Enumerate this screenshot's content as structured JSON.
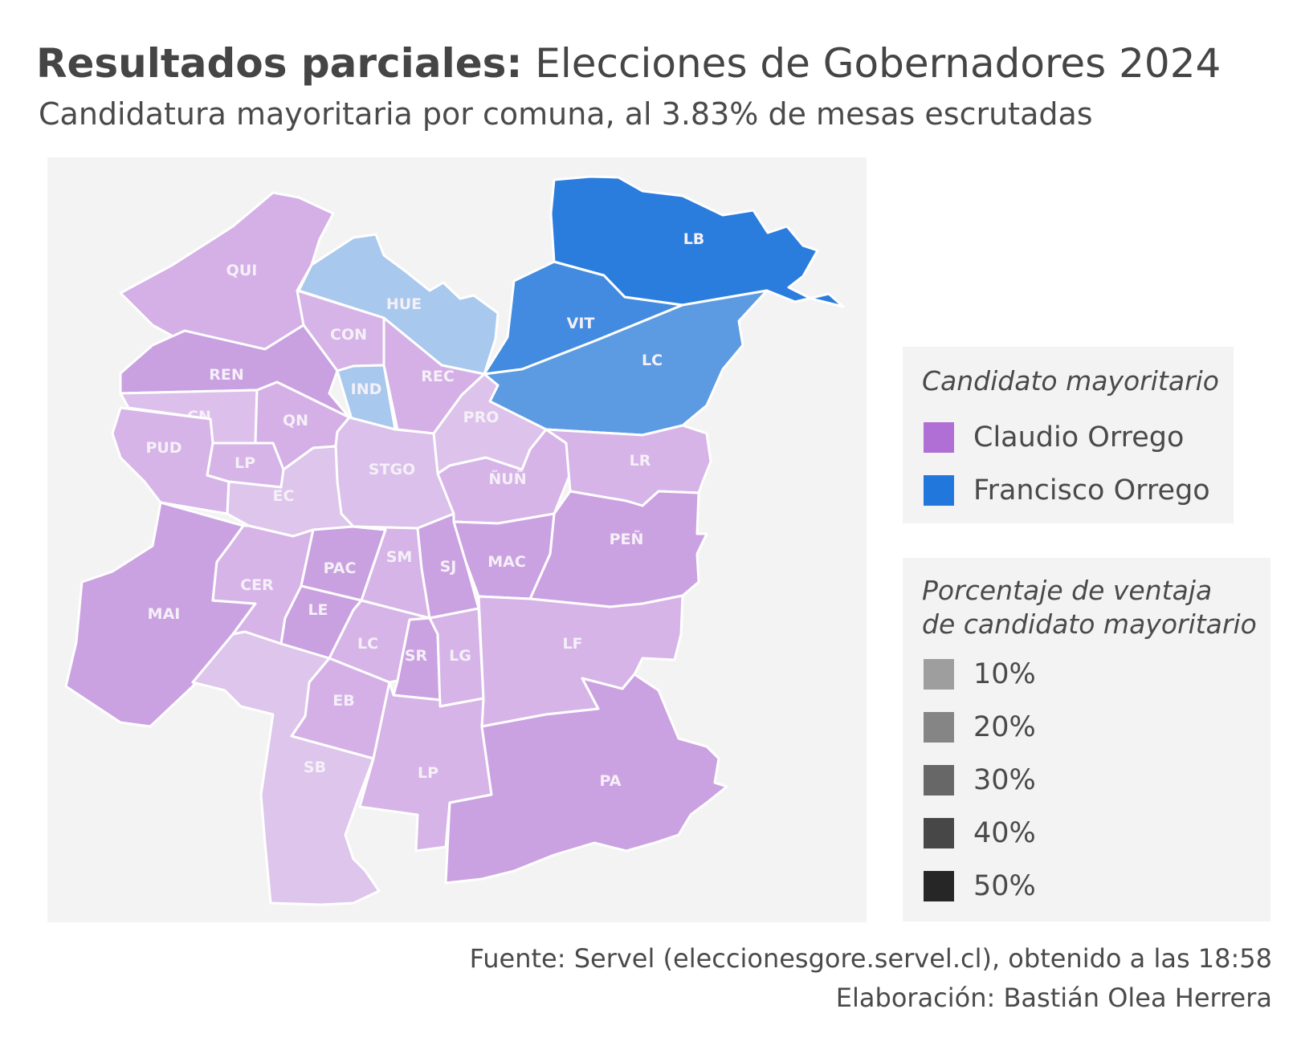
{
  "header": {
    "title_bold": "Resultados parciales:",
    "title_rest": "Elecciones de Gobernadores 2024",
    "subtitle": "Candidatura mayoritaria por comuna, al 3.83% de mesas escrutadas"
  },
  "legend_candidate": {
    "title": "Candidato mayoritario",
    "items": [
      {
        "label": "Claudio Orrego",
        "color": "#b06fd4"
      },
      {
        "label": "Francisco Orrego",
        "color": "#2277dd"
      }
    ]
  },
  "legend_percent": {
    "title_line1": "Porcentaje de ventaja",
    "title_line2": "de candidato mayoritario",
    "items": [
      {
        "label": "10%",
        "color": "#9e9e9e"
      },
      {
        "label": "20%",
        "color": "#858585"
      },
      {
        "label": "30%",
        "color": "#676767"
      },
      {
        "label": "40%",
        "color": "#474747"
      },
      {
        "label": "50%",
        "color": "#262626"
      }
    ]
  },
  "map": {
    "comunas": [
      {
        "label": "QUI",
        "candidate": "Claudio Orrego",
        "color": "#d4b0e6"
      },
      {
        "label": "HUE",
        "candidate": "Francisco Orrego",
        "color": "#a8c8ee"
      },
      {
        "label": "CON",
        "candidate": "Claudio Orrego",
        "color": "#d6b4e7"
      },
      {
        "label": "REN",
        "candidate": "Claudio Orrego",
        "color": "#c9a0e0"
      },
      {
        "label": "IND",
        "candidate": "Francisco Orrego",
        "color": "#a8c8ee"
      },
      {
        "label": "REC",
        "candidate": "Claudio Orrego",
        "color": "#d4b0e6"
      },
      {
        "label": "VIT",
        "candidate": "Francisco Orrego",
        "color": "#428be0"
      },
      {
        "label": "LB",
        "candidate": "Francisco Orrego",
        "color": "#2a7ddd"
      },
      {
        "label": "LC",
        "candidate": "Francisco Orrego",
        "color": "#5c9be2"
      },
      {
        "label": "CN",
        "candidate": "Claudio Orrego",
        "color": "#dcbfea"
      },
      {
        "label": "QN",
        "candidate": "Claudio Orrego",
        "color": "#d4b0e6"
      },
      {
        "label": "PUD",
        "candidate": "Claudio Orrego",
        "color": "#d6b4e7"
      },
      {
        "label": "LP",
        "candidate": "Claudio Orrego",
        "color": "#d6b4e7"
      },
      {
        "label": "PRO",
        "candidate": "Claudio Orrego",
        "color": "#ddc3eb"
      },
      {
        "label": "STGO",
        "candidate": "Claudio Orrego",
        "color": "#dac0ea"
      },
      {
        "label": "EC",
        "candidate": "Claudio Orrego",
        "color": "#dec5eb"
      },
      {
        "label": "ÑUÑ",
        "candidate": "Claudio Orrego",
        "color": "#d6b4e7"
      },
      {
        "label": "LR",
        "candidate": "Claudio Orrego",
        "color": "#d6b4e7"
      },
      {
        "label": "PEÑ",
        "candidate": "Claudio Orrego",
        "color": "#cba2e1"
      },
      {
        "label": "MAI",
        "candidate": "Claudio Orrego",
        "color": "#cba2e1"
      },
      {
        "label": "CER",
        "candidate": "Claudio Orrego",
        "color": "#d6b4e7"
      },
      {
        "label": "PAC",
        "candidate": "Claudio Orrego",
        "color": "#c9a0e0"
      },
      {
        "label": "SM",
        "candidate": "Claudio Orrego",
        "color": "#d6b4e7"
      },
      {
        "label": "SJ",
        "candidate": "Claudio Orrego",
        "color": "#cba2e1"
      },
      {
        "label": "MAC",
        "candidate": "Claudio Orrego",
        "color": "#cba2e1"
      },
      {
        "label": "LE",
        "candidate": "Claudio Orrego",
        "color": "#c9a0e0"
      },
      {
        "label": "LC",
        "candidate": "Claudio Orrego",
        "color": "#d6b4e7"
      },
      {
        "label": "SR",
        "candidate": "Claudio Orrego",
        "color": "#cba2e1"
      },
      {
        "label": "LG",
        "candidate": "Claudio Orrego",
        "color": "#d6b4e7"
      },
      {
        "label": "LF",
        "candidate": "Claudio Orrego",
        "color": "#d6b4e7"
      },
      {
        "label": "EB",
        "candidate": "Claudio Orrego",
        "color": "#d4b0e6"
      },
      {
        "label": "SB",
        "candidate": "Claudio Orrego",
        "color": "#dec5eb"
      },
      {
        "label": "LP",
        "candidate": "Claudio Orrego",
        "color": "#d6b4e7"
      },
      {
        "label": "PA",
        "candidate": "Claudio Orrego",
        "color": "#cba2e1"
      }
    ]
  },
  "footer": {
    "source": "Fuente: Servel (eleccionesgore.servel.cl), obtenido a las 18:58",
    "author": "Elaboración: Bastián Olea Herrera"
  }
}
